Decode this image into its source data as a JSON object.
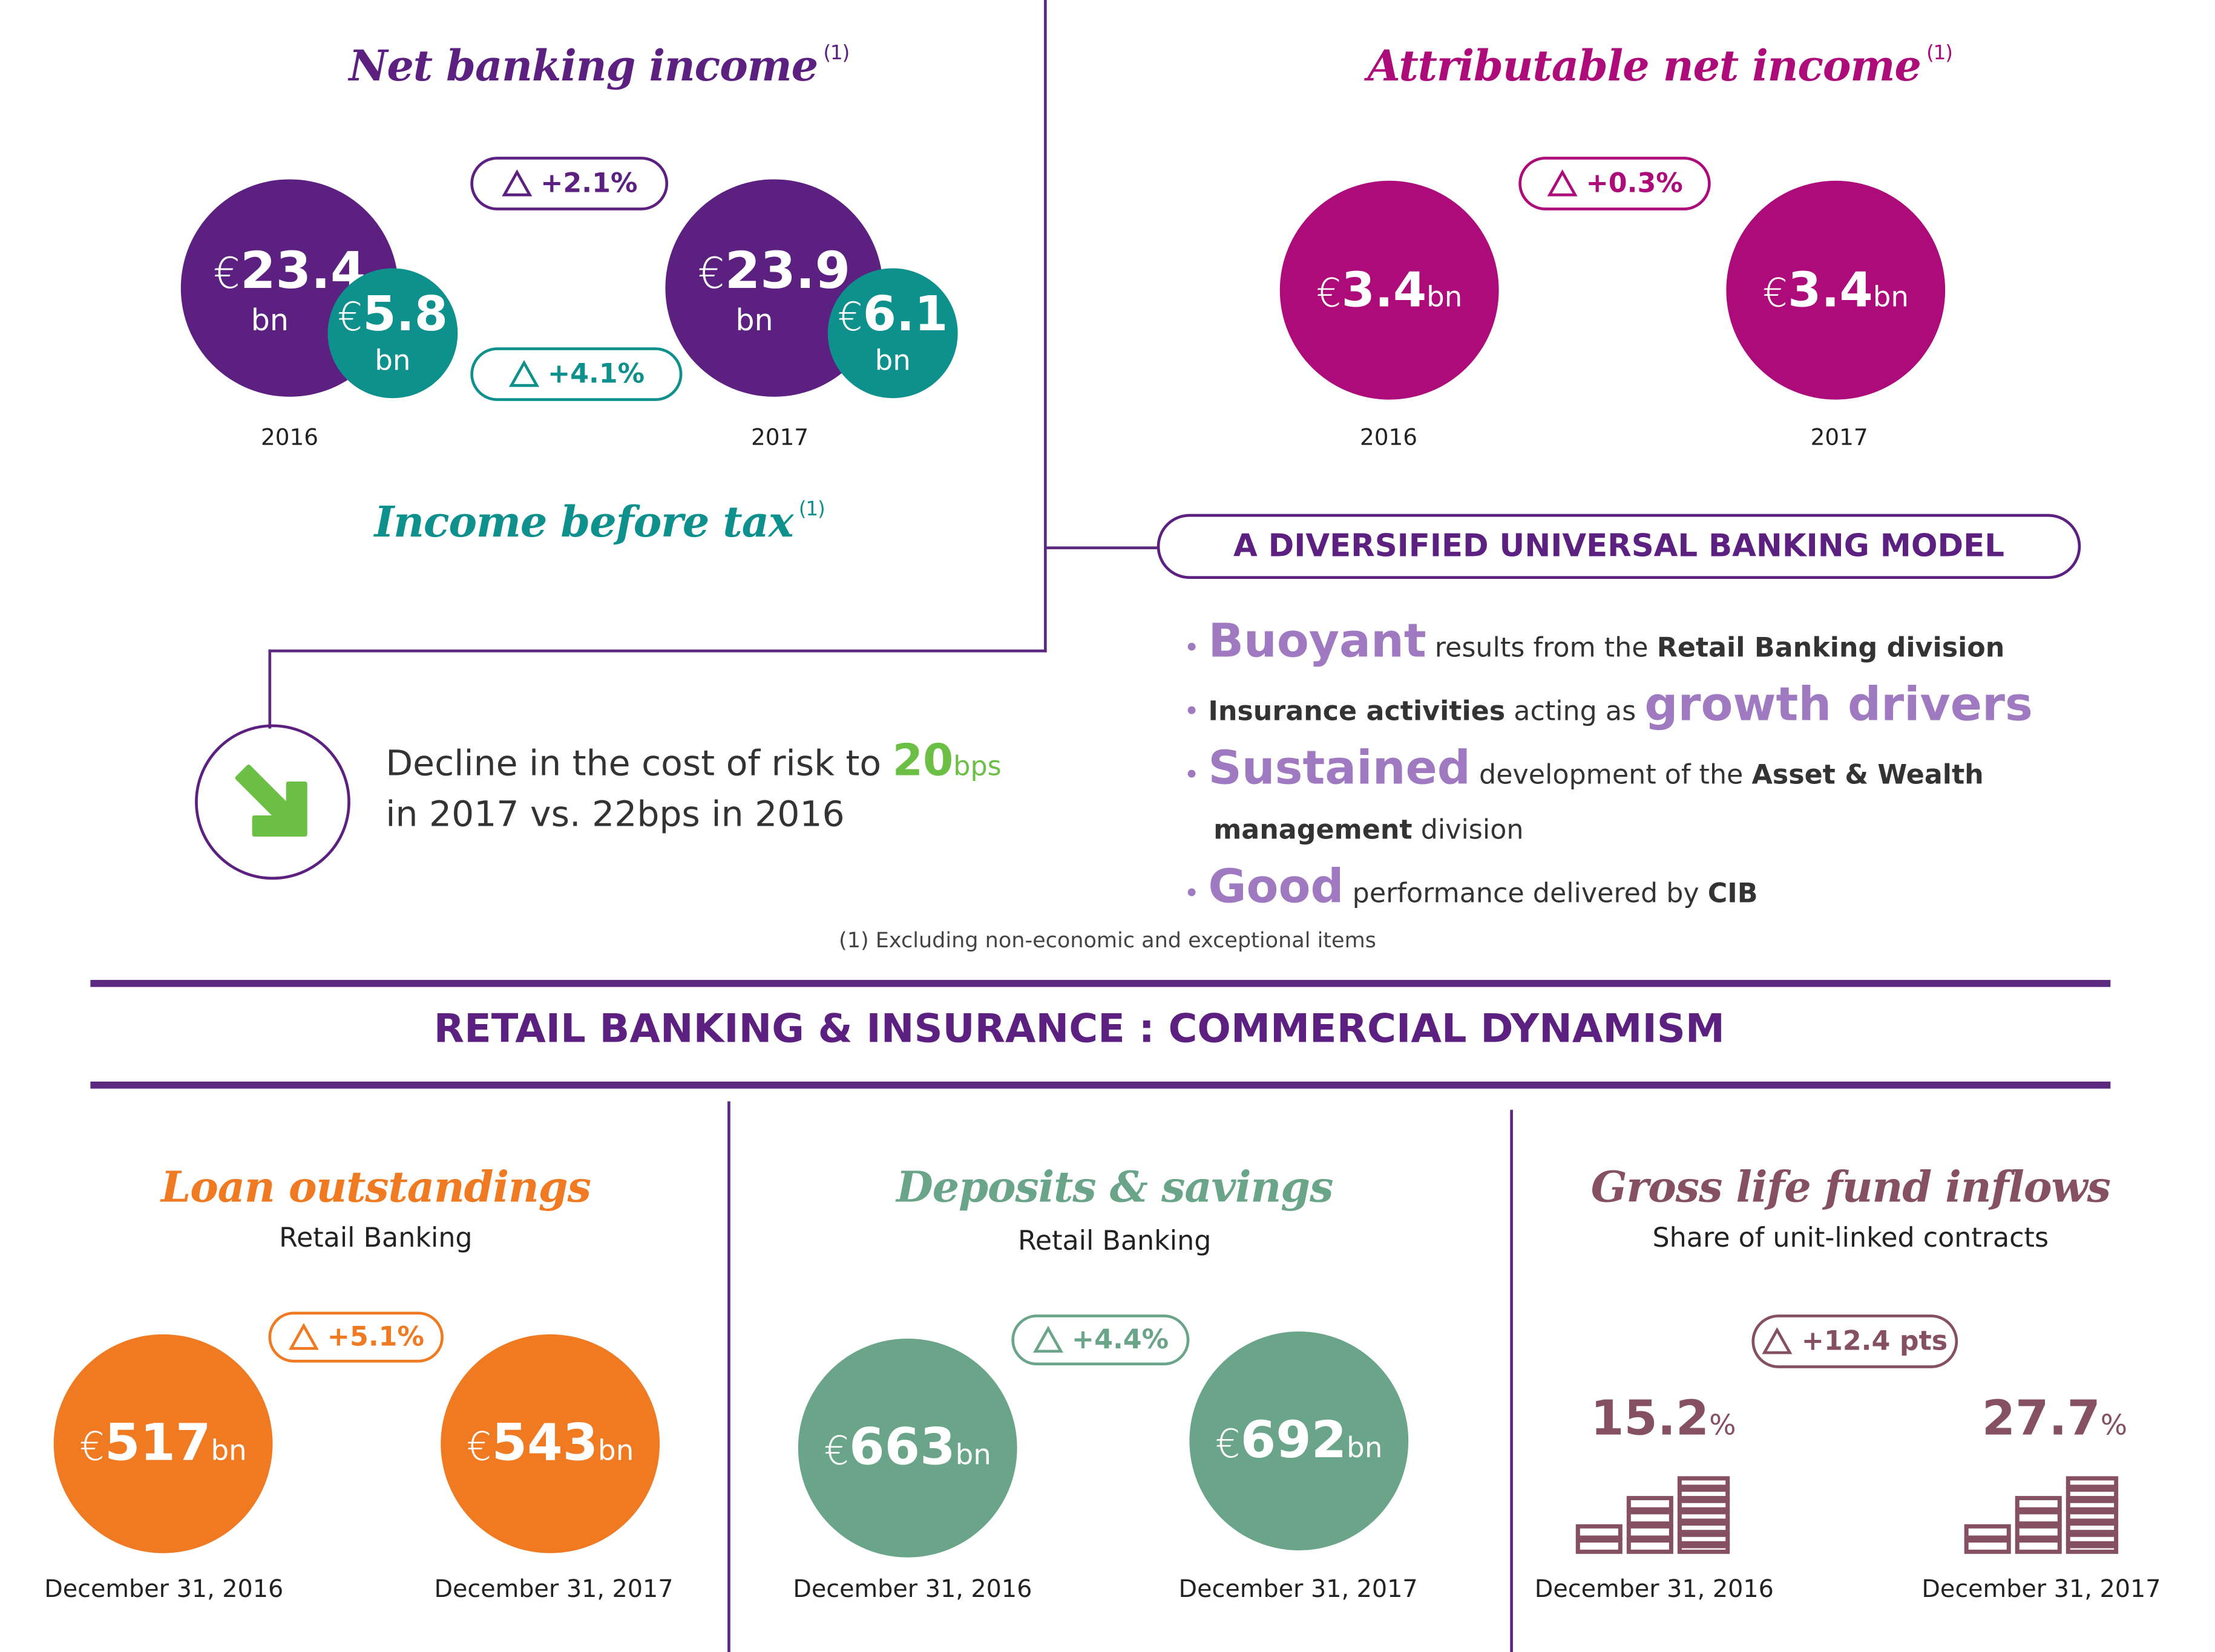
{
  "colors": {
    "purple": "#5b2080",
    "teal": "#0e918c",
    "magenta": "#ad0a7a",
    "orange": "#f07a22",
    "sage": "#6aa58a",
    "mauve": "#855062",
    "green": "#6bbf45",
    "lavender": "#a07ac0"
  },
  "top": {
    "nbi": {
      "title": "Net banking income",
      "footnote_ref": "(1)",
      "change": "+2.1%",
      "y2016": {
        "currency": "€",
        "value": "23.4",
        "unit": "bn",
        "year": "2016"
      },
      "y2017": {
        "currency": "€",
        "value": "23.9",
        "unit": "bn",
        "year": "2017"
      }
    },
    "ibt": {
      "title": "Income before tax",
      "footnote_ref": "(1)",
      "change": "+4.1%",
      "y2016": {
        "currency": "€",
        "value": "5.8",
        "unit": "bn"
      },
      "y2017": {
        "currency": "€",
        "value": "6.1",
        "unit": "bn"
      }
    },
    "ani": {
      "title": "Attributable net income",
      "footnote_ref": "(1)",
      "change": "+0.3%",
      "y2016": {
        "currency": "€",
        "value": "3.4",
        "unit": "bn",
        "year": "2016"
      },
      "y2017": {
        "currency": "€",
        "value": "3.4",
        "unit": "bn",
        "year": "2017"
      }
    },
    "risk": {
      "text1": "Decline in the cost of risk to",
      "value": "20",
      "unit": "bps",
      "text2": "in 2017 vs. 22bps in 2016",
      "icon": "arrow-down-right-icon"
    },
    "model": {
      "title": "A DIVERSIFIED UNIVERSAL BANKING MODEL",
      "b1": {
        "big": "Buoyant",
        "mid": "results from the",
        "bold": "Retail Banking division"
      },
      "b2": {
        "bold": "Insurance activities",
        "mid": "acting as",
        "big": "growth drivers"
      },
      "b3": {
        "big": "Sustained",
        "mid": "development of the",
        "bold": "Asset & Wealth",
        "bold2": "management",
        "end": "division"
      },
      "b4": {
        "big": "Good",
        "mid": "performance delivered by",
        "bold": "CIB"
      }
    },
    "footnote": "(1) Excluding non-economic and exceptional items"
  },
  "section_title": "RETAIL BANKING & INSURANCE : COMMERCIAL DYNAMISM",
  "loans": {
    "title": "Loan outstandings",
    "subtitle": "Retail Banking",
    "change": "+5.1%",
    "d2016": {
      "currency": "€",
      "value": "517",
      "unit": "bn",
      "date": "December 31, 2016"
    },
    "d2017": {
      "currency": "€",
      "value": "543",
      "unit": "bn",
      "date": "December 31, 2017"
    }
  },
  "deposits": {
    "title": "Deposits & savings",
    "subtitle": "Retail Banking",
    "change": "+4.4%",
    "d2016": {
      "currency": "€",
      "value": "663",
      "unit": "bn",
      "date": "December 31, 2016"
    },
    "d2017": {
      "currency": "€",
      "value": "692",
      "unit": "bn",
      "date": "December 31, 2017"
    }
  },
  "life": {
    "title": "Gross life fund inflows",
    "subtitle": "Share of unit-linked contracts",
    "change": "+12.4 pts",
    "d2016": {
      "value": "15.2",
      "unit": "%",
      "date": "December 31, 2016"
    },
    "d2017": {
      "value": "27.7",
      "unit": "%",
      "date": "December 31, 2017"
    }
  }
}
